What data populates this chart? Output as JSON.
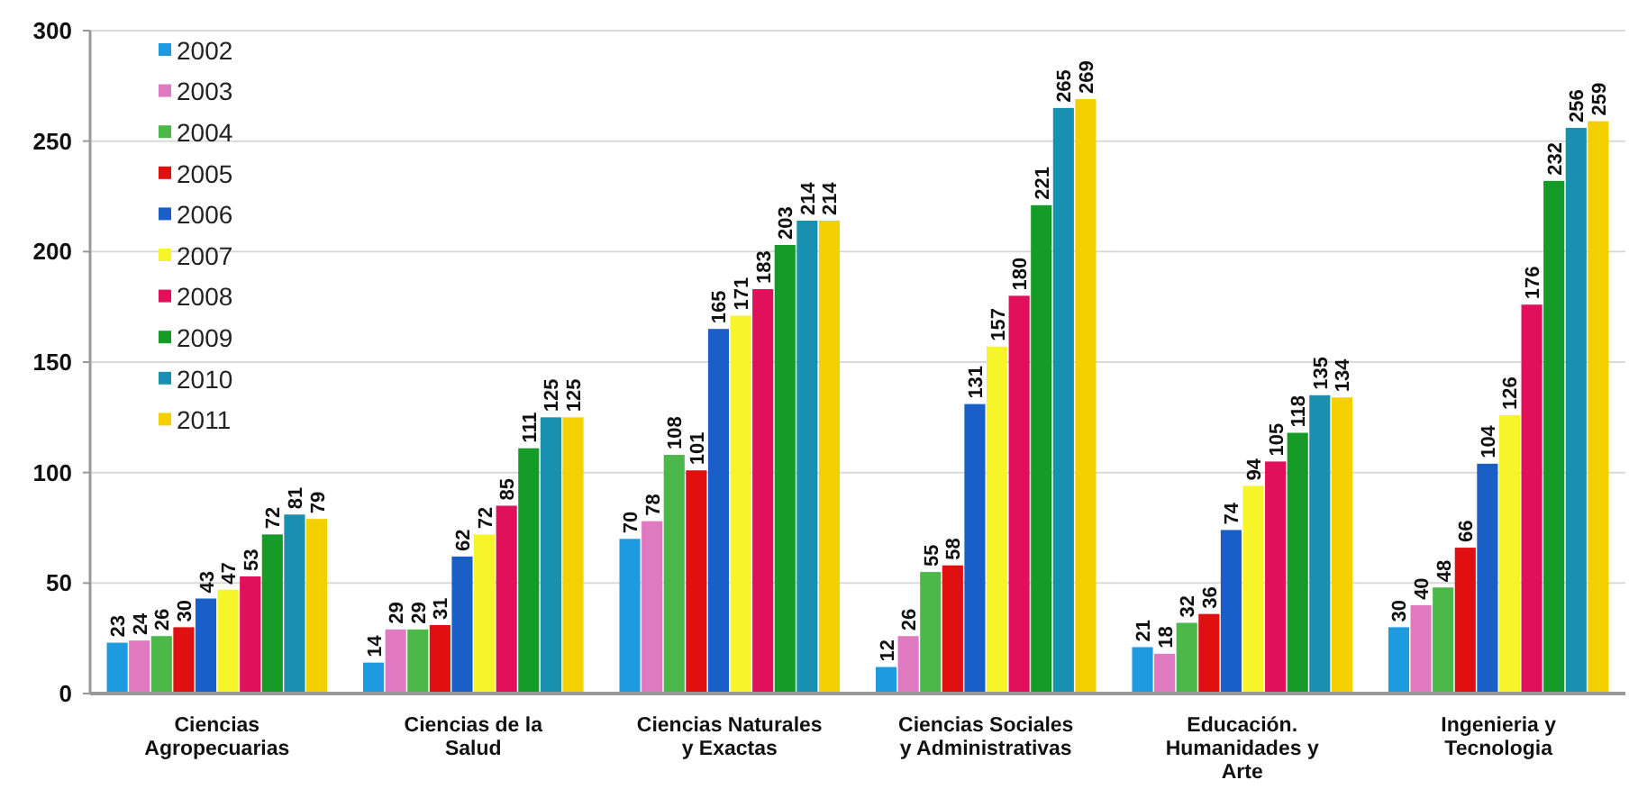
{
  "chart_data": {
    "type": "bar",
    "categories": [
      "Ciencias\nAgropecuarias",
      "Ciencias de la\nSalud",
      "Ciencias Naturales\ny Exactas",
      "Ciencias Sociales\ny Administrativas",
      "Educación.\nHumanidades y\nArte",
      "Ingenieria y\nTecnologia"
    ],
    "series": [
      {
        "name": "2002",
        "color": "#1e9be0",
        "values": [
          23,
          14,
          70,
          12,
          21,
          30
        ]
      },
      {
        "name": "2003",
        "color": "#e07ac0",
        "values": [
          24,
          29,
          78,
          26,
          18,
          40
        ]
      },
      {
        "name": "2004",
        "color": "#4cb84a",
        "values": [
          26,
          29,
          108,
          55,
          32,
          48
        ]
      },
      {
        "name": "2005",
        "color": "#e01010",
        "values": [
          30,
          31,
          101,
          58,
          36,
          66
        ]
      },
      {
        "name": "2006",
        "color": "#1a5fc8",
        "values": [
          43,
          62,
          165,
          131,
          74,
          104
        ]
      },
      {
        "name": "2007",
        "color": "#f5f52a",
        "values": [
          47,
          72,
          171,
          157,
          94,
          126
        ]
      },
      {
        "name": "2008",
        "color": "#e0105a",
        "values": [
          53,
          85,
          183,
          180,
          105,
          176
        ]
      },
      {
        "name": "2009",
        "color": "#169a28",
        "values": [
          72,
          111,
          203,
          221,
          118,
          232
        ]
      },
      {
        "name": "2010",
        "color": "#1a90b0",
        "values": [
          81,
          125,
          214,
          265,
          135,
          256
        ]
      },
      {
        "name": "2011",
        "color": "#f5d000",
        "values": [
          79,
          125,
          214,
          269,
          134,
          259
        ]
      }
    ],
    "ylim": [
      0,
      300
    ],
    "yticks": [
      0,
      50,
      100,
      150,
      200,
      250,
      300
    ],
    "grid": "y",
    "legend": "top left",
    "data_labels": true
  }
}
